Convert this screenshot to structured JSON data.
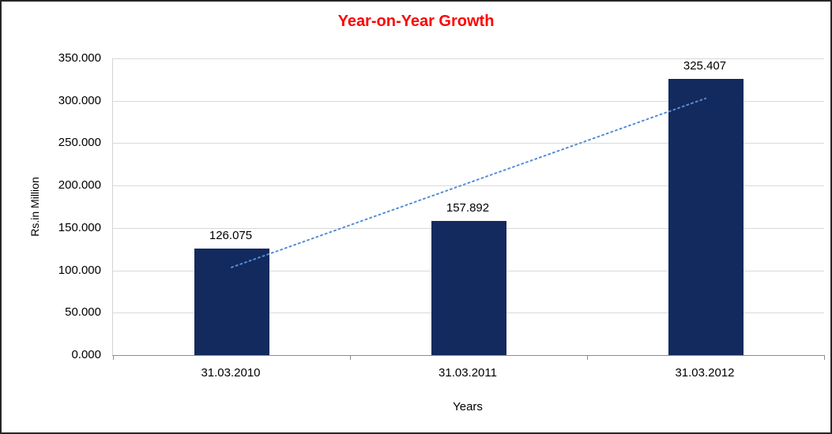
{
  "chart_data": {
    "type": "bar",
    "title": "Year-on-Year Growth",
    "title_color": "#FF0000",
    "xlabel": "Years",
    "ylabel": "Rs.in Million",
    "categories": [
      "31.03.2010",
      "31.03.2011",
      "31.03.2012"
    ],
    "values": [
      126.075,
      157.892,
      325.407
    ],
    "data_labels": [
      "126.075",
      "157.892",
      "325.407"
    ],
    "ylim": [
      0,
      350
    ],
    "ytick_step": 50,
    "ytick_labels": [
      "0.000",
      "50.000",
      "100.000",
      "150.000",
      "200.000",
      "250.000",
      "300.000",
      "350.000"
    ],
    "grid": true,
    "legend": "none",
    "bar_color": "#132A5E",
    "gridline_color": "#D9D9D9",
    "trendline": {
      "type": "linear",
      "style": "dotted",
      "color": "#558ED5",
      "start_value": 103.5,
      "end_value": 302.8
    }
  }
}
